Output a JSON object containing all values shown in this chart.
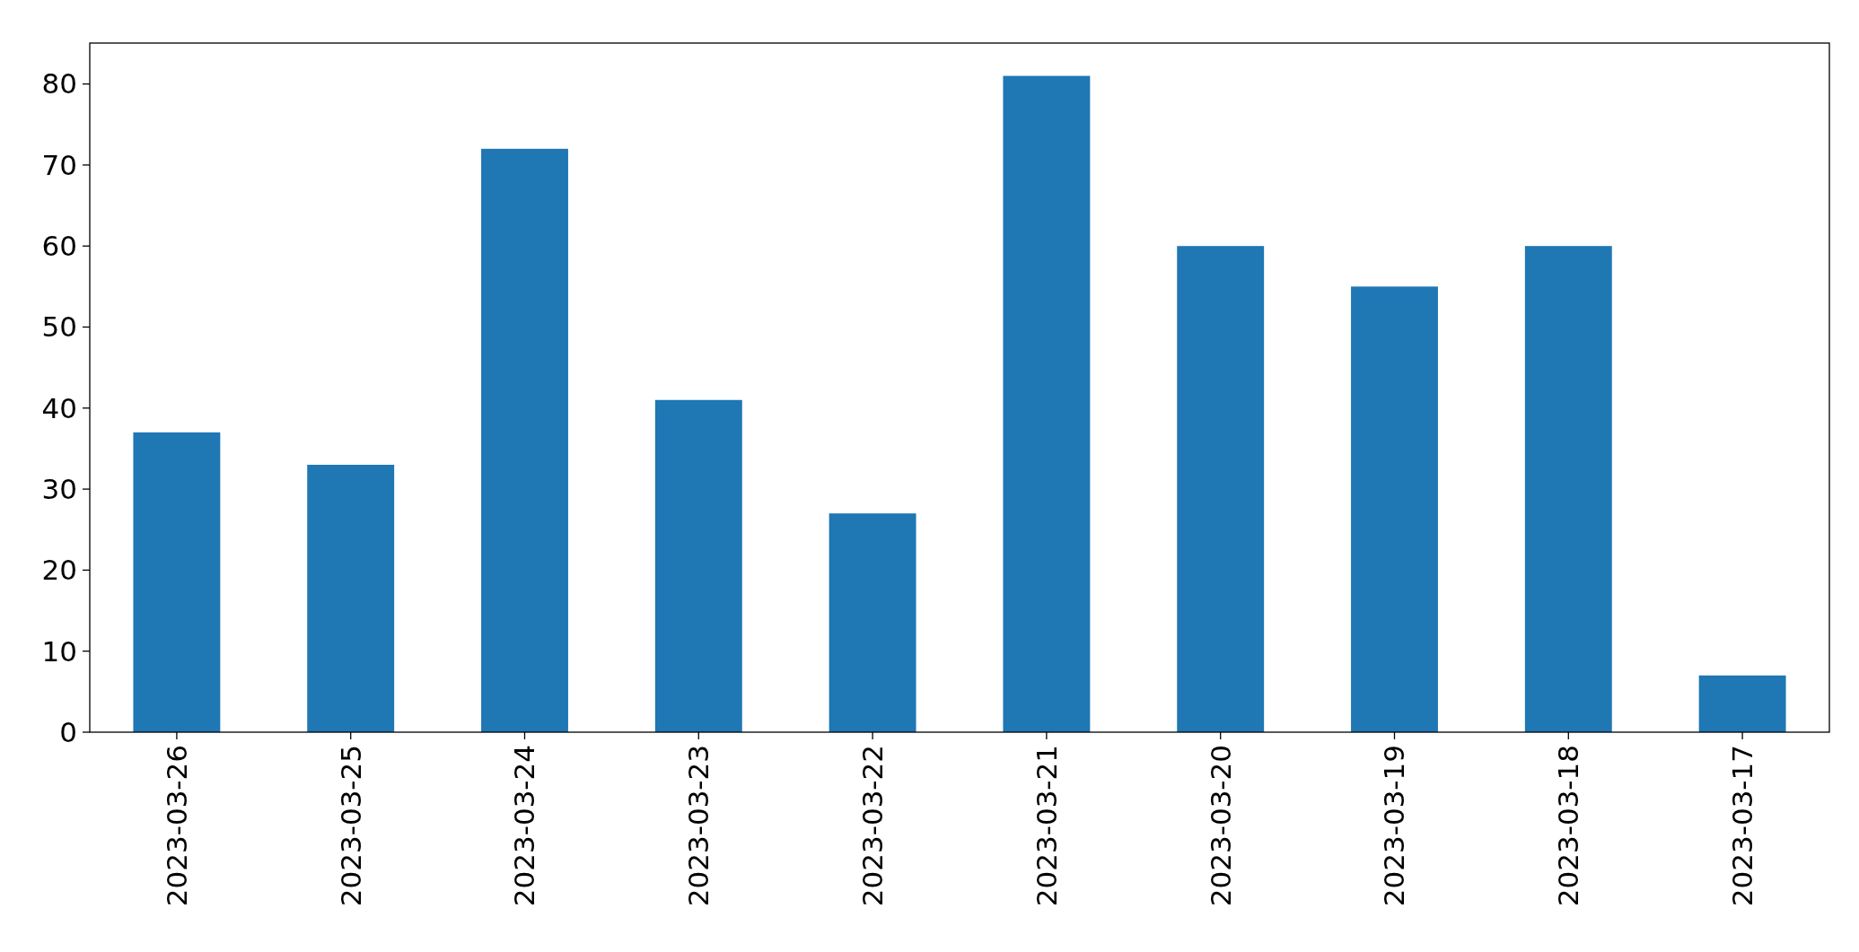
{
  "chart_data": {
    "type": "bar",
    "categories": [
      "2023-03-26",
      "2023-03-25",
      "2023-03-24",
      "2023-03-23",
      "2023-03-22",
      "2023-03-21",
      "2023-03-20",
      "2023-03-19",
      "2023-03-18",
      "2023-03-17"
    ],
    "values": [
      37,
      33,
      72,
      41,
      27,
      81,
      60,
      55,
      60,
      7
    ],
    "color": "#1f77b4",
    "ylim": [
      0,
      85.05
    ],
    "yticks": [
      0,
      10,
      20,
      30,
      40,
      50,
      60,
      70,
      80
    ],
    "grid": false
  }
}
